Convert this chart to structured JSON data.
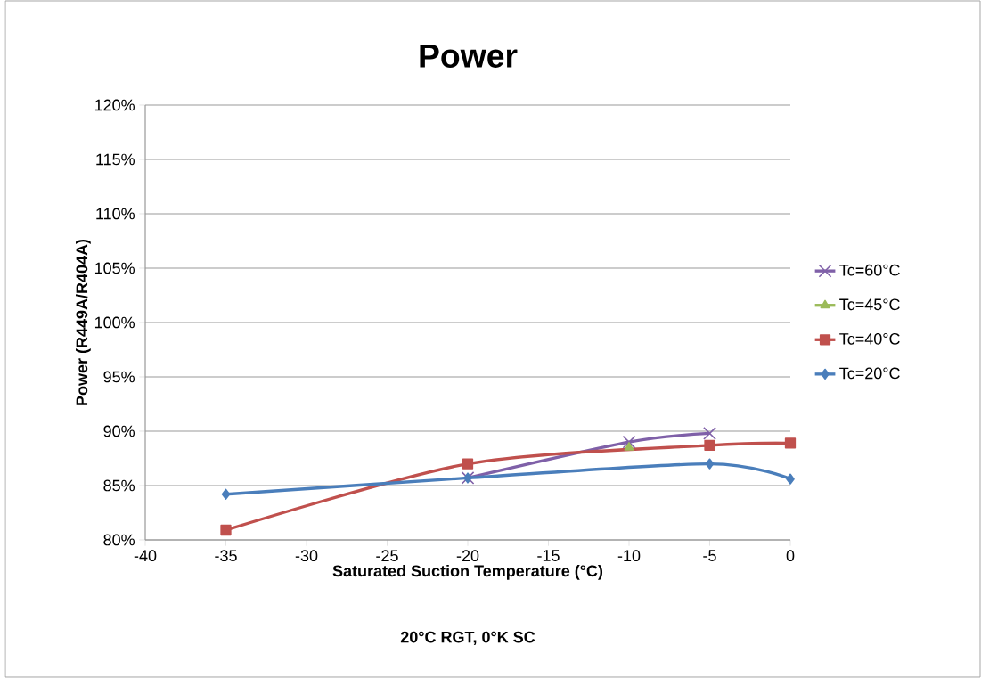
{
  "chart_data": {
    "type": "line",
    "title": "Power",
    "xlabel": "Saturated Suction Temperature (°C)",
    "ylabel": "Power  (R449A/R404A)",
    "annotations": [
      "20°C RGT, 0°K SC"
    ],
    "xlim": [
      -40,
      0
    ],
    "xticks": [
      -40,
      -35,
      -30,
      -25,
      -20,
      -15,
      -10,
      -5,
      0
    ],
    "ylim": [
      80,
      120
    ],
    "yticks": [
      {
        "value": 80,
        "label": "80%"
      },
      {
        "value": 85,
        "label": "85%"
      },
      {
        "value": 90,
        "label": "90%"
      },
      {
        "value": 95,
        "label": "95%"
      },
      {
        "value": 100,
        "label": "100%"
      },
      {
        "value": 105,
        "label": "105%"
      },
      {
        "value": 110,
        "label": "110%"
      },
      {
        "value": 115,
        "label": "115%"
      },
      {
        "value": 120,
        "label": "120%"
      }
    ],
    "grid": "y",
    "legend": "right",
    "line_style": "solid",
    "series": [
      {
        "name": "Tc=60°C",
        "color": "#7f60a8",
        "marker": "cross",
        "x": [
          -20,
          -10,
          -5
        ],
        "values": [
          85.7,
          89.0,
          89.8
        ]
      },
      {
        "name": "Tc=45°C",
        "color": "#9bbb59",
        "marker": "triangle",
        "x": [
          -10
        ],
        "values": [
          88.5
        ]
      },
      {
        "name": "Tc=40°C",
        "color": "#c0504d",
        "marker": "square",
        "x": [
          -35,
          -20,
          -5,
          0
        ],
        "values": [
          80.9,
          87.0,
          88.7,
          88.9
        ]
      },
      {
        "name": "Tc=20°C",
        "color": "#4a7ebb",
        "marker": "diamond",
        "x": [
          -35,
          -20,
          -5,
          0
        ],
        "values": [
          84.2,
          85.7,
          87.0,
          85.6
        ]
      }
    ]
  }
}
